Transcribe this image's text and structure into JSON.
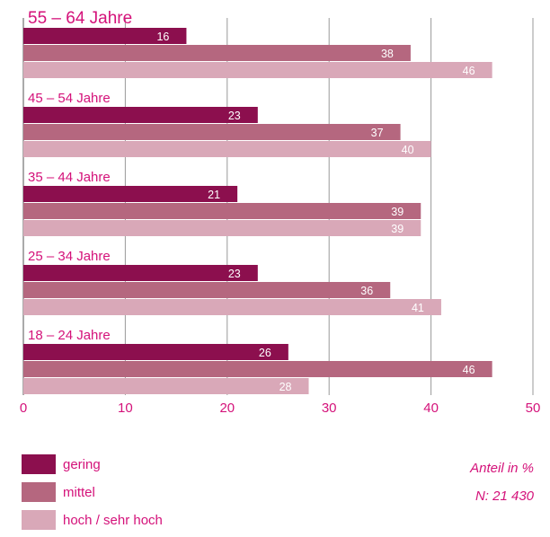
{
  "chart_data": {
    "type": "bar",
    "orientation": "horizontal",
    "categories": [
      "55 – 64 Jahre",
      "45 – 54 Jahre",
      "35 – 44 Jahre",
      "25 – 34 Jahre",
      "18 – 24 Jahre"
    ],
    "series": [
      {
        "name": "gering",
        "values": [
          16,
          23,
          21,
          23,
          26
        ],
        "color": "#8c0f4e"
      },
      {
        "name": "mittel",
        "values": [
          38,
          37,
          39,
          36,
          46
        ],
        "color": "#b5677f"
      },
      {
        "name": "hoch / sehr hoch",
        "values": [
          46,
          40,
          39,
          41,
          28
        ],
        "color": "#d9a8b8"
      }
    ],
    "xlim": [
      0,
      50
    ],
    "xticks": [
      "0",
      "10",
      "20",
      "30",
      "40",
      "50"
    ],
    "grid": true,
    "legend_placement": "bottom-left",
    "notes": [
      "Anteil in %",
      "N: 21 430"
    ]
  },
  "colors": {
    "accent": "#d4127a",
    "grid": "#999999"
  }
}
